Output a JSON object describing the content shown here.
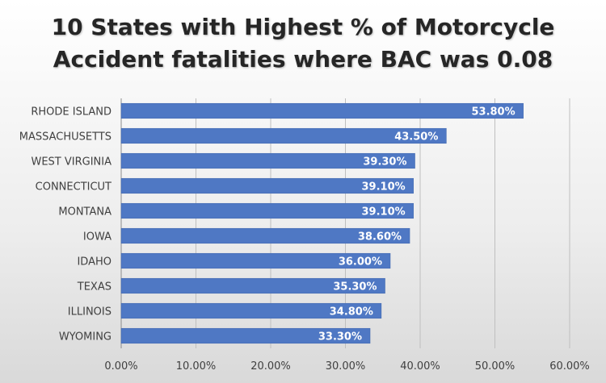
{
  "chart_data": {
    "type": "bar",
    "orientation": "horizontal",
    "title_lines": [
      "10 States with Highest % of Motorcycle",
      "Accident fatalities where BAC was 0.08"
    ],
    "categories": [
      "RHODE ISLAND",
      "MASSACHUSETTS",
      "WEST VIRGINIA",
      "CONNECTICUT",
      "MONTANA",
      "IOWA",
      "IDAHO",
      "TEXAS",
      "ILLINOIS",
      "WYOMING"
    ],
    "values": [
      53.8,
      43.5,
      39.3,
      39.1,
      39.1,
      38.6,
      36.0,
      35.3,
      34.8,
      33.3
    ],
    "data_labels": [
      "53.80%",
      "43.50%",
      "39.30%",
      "39.10%",
      "39.10%",
      "38.60%",
      "36.00%",
      "35.30%",
      "34.80%",
      "33.30%"
    ],
    "xlim": [
      0,
      60
    ],
    "x_ticks": [
      0,
      10,
      20,
      30,
      40,
      50,
      60
    ],
    "x_tick_labels": [
      "0.00%",
      "10.00%",
      "20.00%",
      "30.00%",
      "40.00%",
      "50.00%",
      "60.00%"
    ],
    "xlabel": "",
    "ylabel": "",
    "grid": true,
    "legend": "none",
    "bar_color": "#4f78c4",
    "bar_border_color": "#3d64ad"
  }
}
